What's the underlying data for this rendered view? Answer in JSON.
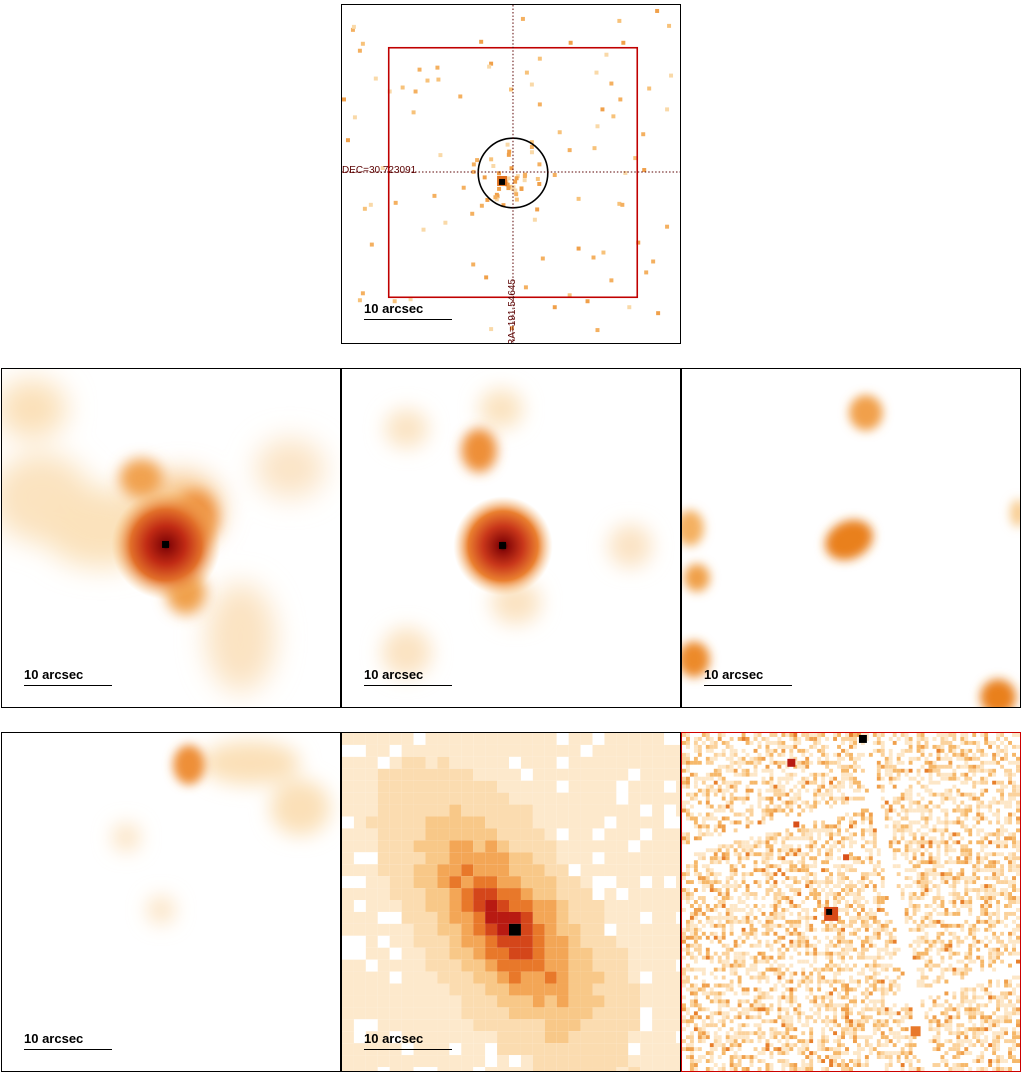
{
  "scale_label": "10 arcsec",
  "coordinates": {
    "dec_label": "DEC=30.723091",
    "ra_label": "RA=191.54645"
  },
  "panels": [
    {
      "id": "xray-counts",
      "frame_color": "#000000"
    },
    {
      "id": "band-1",
      "frame_color": "#000000"
    },
    {
      "id": "band-2",
      "frame_color": "#000000"
    },
    {
      "id": "band-3",
      "frame_color": "#000000"
    },
    {
      "id": "band-4",
      "frame_color": "#000000"
    },
    {
      "id": "optical-galaxy",
      "frame_color": "#000000"
    },
    {
      "id": "noisy-image",
      "frame_color": "#cc0000"
    }
  ],
  "colors": {
    "colormap": [
      "#ffffff",
      "#fde6c4",
      "#f7b968",
      "#ee8a28",
      "#d9501a",
      "#b81a12",
      "#000000"
    ],
    "fov_box": "#c00000",
    "circle": "#000000",
    "crosshair": "#5a0000"
  }
}
